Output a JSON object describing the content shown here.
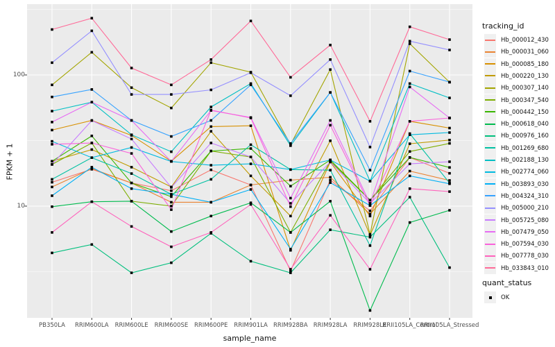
{
  "colors": {
    "panel_bg": "#EBEBEB",
    "grid": "#FFFFFF",
    "point": "#000000",
    "tick": "#333333",
    "tick_label": "#4d4d4d",
    "text": "#111111",
    "legend_key_bg": "#f0f0f0"
  },
  "legend": {
    "tracking_title": "tracking_id",
    "quant_title": "quant_status",
    "quant_items": [
      {
        "label": "OK",
        "shape": "black-square"
      }
    ]
  },
  "chart_data": {
    "type": "line",
    "title": "",
    "xlabel": "sample_name",
    "ylabel": "FPKM + 1",
    "yscale": "log10",
    "ylim": [
      1.4,
      330
    ],
    "grid": "on",
    "legend_position": "right",
    "ytick_labels": [
      "100",
      "10"
    ],
    "ytick_values": [
      100,
      10
    ],
    "categories": [
      "PB350LA",
      "RRIM600LA",
      "RRIM600LE",
      "RRIM600SE",
      "RRIM600PE",
      "RRIM901LA",
      "RRIM928BA",
      "RRIM928LA",
      "RRIM928LE",
      "RRII105LA_Control",
      "RRII105LA_Stressed"
    ],
    "series": [
      {
        "name": "Hb_000012_430",
        "color": "#F8766D",
        "values": [
          15.2,
          19.1,
          15.0,
          13.1,
          18.9,
          14.5,
          3.2,
          15.8,
          9.2,
          23.5,
          17.8
        ]
      },
      {
        "name": "Hb_000031_060",
        "color": "#EA8331",
        "values": [
          14.0,
          19.3,
          15.0,
          10.7,
          10.7,
          14.5,
          15.8,
          16.6,
          8.7,
          18.5,
          15.7
        ]
      },
      {
        "name": "Hb_000085_180",
        "color": "#D89000",
        "values": [
          38.0,
          45.0,
          34.6,
          22.0,
          40.4,
          41.0,
          4.6,
          21.7,
          8.4,
          44.3,
          39.4
        ]
      },
      {
        "name": "Hb_000220_130",
        "color": "#C09B00",
        "values": [
          22.0,
          27.0,
          19.8,
          14.0,
          37.2,
          17.0,
          8.4,
          31.5,
          6.0,
          29.9,
          31.9
        ]
      },
      {
        "name": "Hb_000307_140",
        "color": "#A3A500",
        "values": [
          84.0,
          149.0,
          80.0,
          56.0,
          124.0,
          105.0,
          29.5,
          110.0,
          6.1,
          173.0,
          88.0
        ]
      },
      {
        "name": "Hb_000347_540",
        "color": "#7CAE00",
        "values": [
          20.8,
          30.3,
          10.9,
          10.0,
          26.3,
          23.7,
          6.3,
          22.0,
          11.1,
          26.1,
          30.1
        ]
      },
      {
        "name": "Hb_000442_150",
        "color": "#39B600",
        "values": [
          22.0,
          34.3,
          15.0,
          11.8,
          26.3,
          27.5,
          14.2,
          22.5,
          11.1,
          23.5,
          19.7
        ]
      },
      {
        "name": "Hb_000618_040",
        "color": "#00BB4E",
        "values": [
          9.9,
          10.8,
          10.9,
          6.4,
          8.4,
          10.6,
          6.3,
          10.9,
          1.6,
          7.5,
          9.3
        ]
      },
      {
        "name": "Hb_000976_160",
        "color": "#00BF7D",
        "values": [
          4.4,
          5.1,
          3.1,
          3.7,
          6.2,
          3.8,
          3.1,
          6.6,
          5.8,
          11.7,
          3.4
        ]
      },
      {
        "name": "Hb_001269_680",
        "color": "#00C1A3",
        "values": [
          16.0,
          23.4,
          17.7,
          12.3,
          16.0,
          29.4,
          19.0,
          18.8,
          5.0,
          35.7,
          15.0
        ]
      },
      {
        "name": "Hb_002188_130",
        "color": "#00BFC4",
        "values": [
          53.0,
          62.0,
          35.0,
          26.0,
          57.0,
          86.0,
          28.9,
          73.6,
          15.5,
          86.0,
          66.8
        ]
      },
      {
        "name": "Hb_002774_060",
        "color": "#00BAE0",
        "values": [
          31.2,
          23.4,
          28.0,
          21.9,
          20.5,
          21.0,
          19.0,
          22.5,
          15.5,
          35.0,
          36.4
        ]
      },
      {
        "name": "Hb_003893_030",
        "color": "#00B0F6",
        "values": [
          12.0,
          19.8,
          13.6,
          12.3,
          10.7,
          13.4,
          4.7,
          15.1,
          10.1,
          17.0,
          14.8
        ]
      },
      {
        "name": "Hb_004324_310",
        "color": "#35A2FF",
        "values": [
          68.0,
          77.5,
          45.0,
          34.0,
          45.0,
          84.0,
          30.0,
          73.6,
          18.8,
          107.0,
          88.3
        ]
      },
      {
        "name": "Hb_005000_210",
        "color": "#9590FF",
        "values": [
          124.0,
          217.0,
          71.0,
          71.0,
          77.0,
          104.0,
          69.5,
          131.0,
          28.2,
          181.0,
          155.0
        ]
      },
      {
        "name": "Hb_005725_080",
        "color": "#C77CFF",
        "values": [
          20.8,
          44.9,
          32.5,
          13.9,
          30.3,
          23.7,
          10.5,
          21.7,
          10.5,
          21.0,
          21.8
        ]
      },
      {
        "name": "Hb_007479_050",
        "color": "#E76BF3",
        "values": [
          43.7,
          62.0,
          45.0,
          21.9,
          53.6,
          47.4,
          11.5,
          45.0,
          10.5,
          81.0,
          47.0
        ]
      },
      {
        "name": "Hb_007594_030",
        "color": "#FA62DB",
        "values": [
          29.6,
          30.3,
          25.2,
          9.4,
          54.0,
          47.0,
          9.9,
          41.4,
          10.1,
          44.3,
          47.0
        ]
      },
      {
        "name": "Hb_007778_030",
        "color": "#FF62BC",
        "values": [
          6.3,
          10.8,
          7.0,
          4.9,
          6.3,
          10.3,
          3.3,
          8.5,
          3.3,
          13.6,
          12.9
        ]
      },
      {
        "name": "Hb_033843_010",
        "color": "#FF6A98",
        "values": [
          222.0,
          271.0,
          113.0,
          84.0,
          131.0,
          258.0,
          96.0,
          169.0,
          44.3,
          233.0,
          186.0
        ]
      }
    ]
  }
}
